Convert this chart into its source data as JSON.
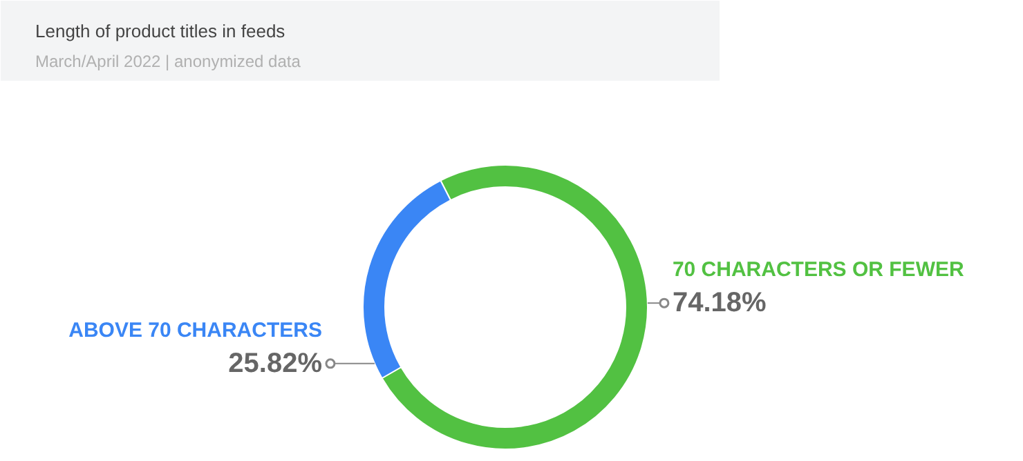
{
  "chart_data": {
    "type": "donut",
    "title": "Length of product titles in feeds",
    "subtitle": "March/April 2022 | anonymized data",
    "categories": [
      "70 CHARACTERS OR FEWER",
      "ABOVE 70 CHARACTERS"
    ],
    "values": [
      74.18,
      25.82
    ],
    "colors": [
      "#52c142",
      "#3a86f5"
    ],
    "value_labels": [
      "74.18%",
      "25.82%"
    ]
  }
}
